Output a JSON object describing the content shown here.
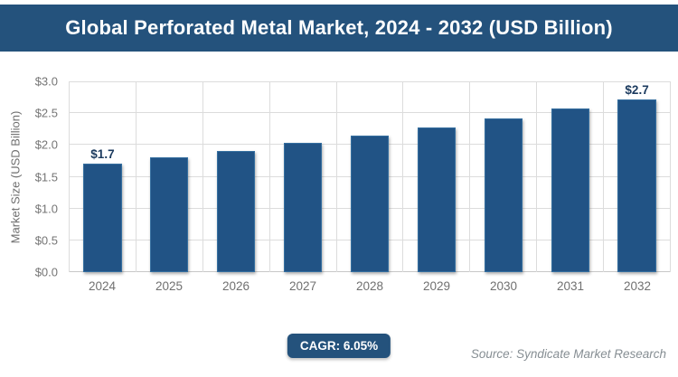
{
  "header": {
    "title": "Global Perforated Metal Market, 2024 - 2032 (USD Billion)"
  },
  "chart_data": {
    "type": "bar",
    "title": "Global Perforated Metal Market, 2024 - 2032 (USD Billion)",
    "categories": [
      "2024",
      "2025",
      "2026",
      "2027",
      "2028",
      "2029",
      "2030",
      "2031",
      "2032"
    ],
    "values": [
      1.7,
      1.8,
      1.91,
      2.03,
      2.15,
      2.28,
      2.42,
      2.57,
      2.72
    ],
    "data_labels": [
      "$1.7",
      "",
      "",
      "",
      "",
      "",
      "",
      "",
      "$2.7"
    ],
    "xlabel": "",
    "ylabel": "Market Size (USD Billion)",
    "yticks": [
      "$3.0",
      "$2.5",
      "$2.0",
      "$1.5",
      "$1.0",
      "$0.5",
      "$0.0"
    ],
    "ylim": [
      0,
      3.0
    ],
    "grid": true,
    "legend": false,
    "bar_color": "#215385",
    "gridline_color": "#dcdcdc"
  },
  "footer": {
    "cagr_label": "CAGR: 6.05%",
    "source": "Source: Syndicate Market Research"
  },
  "colors": {
    "banner": "#24527c",
    "bar": "#215385",
    "data_label": "#1b3a5e",
    "axis_text": "#707070",
    "source_text": "#868e93"
  }
}
